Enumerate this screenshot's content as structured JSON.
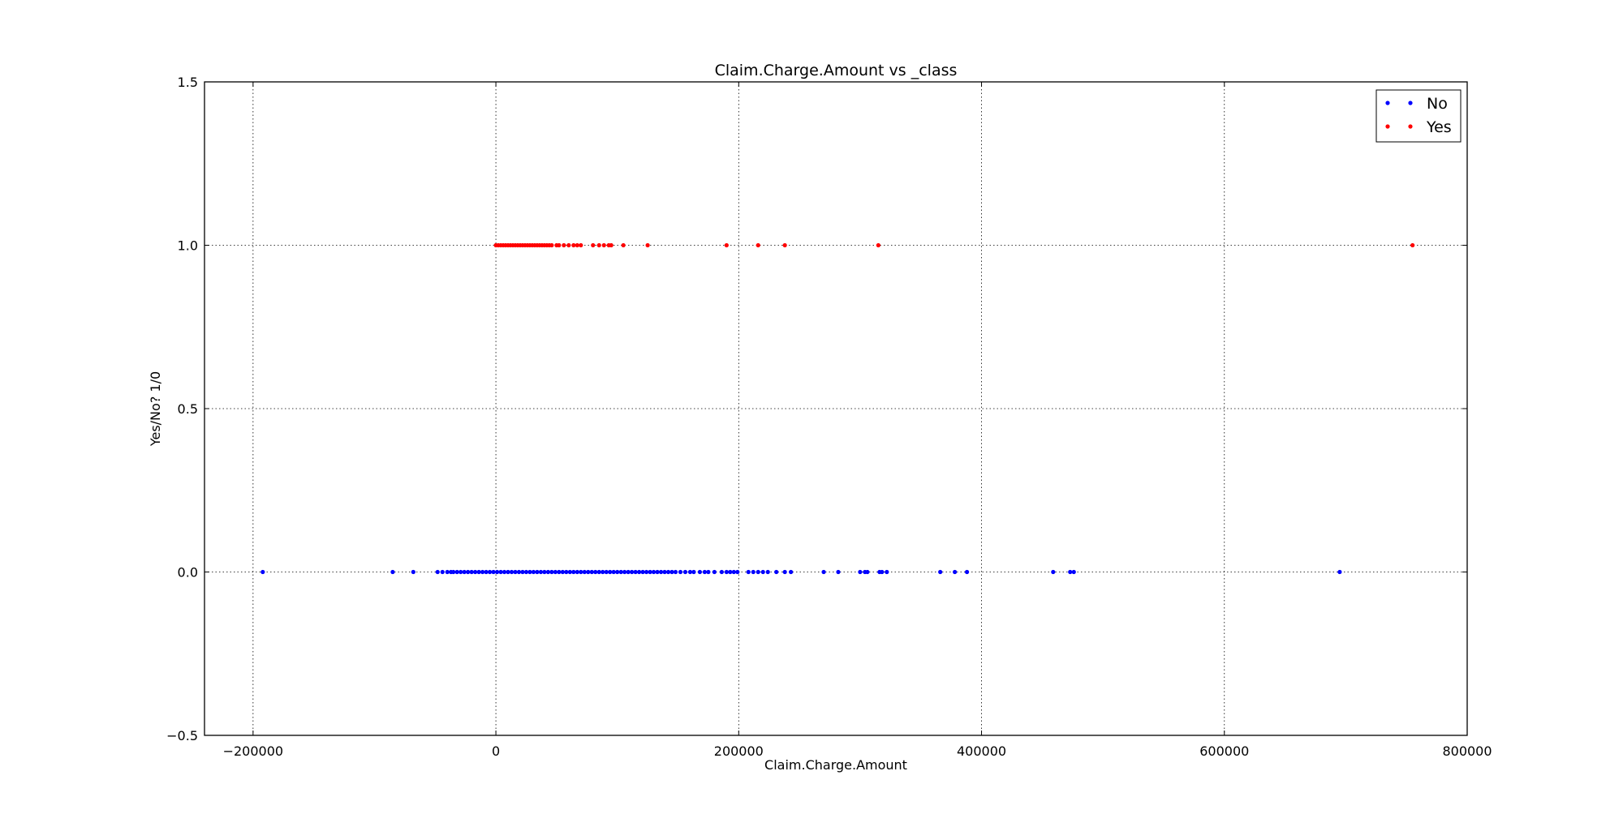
{
  "chart_data": {
    "type": "scatter",
    "title": "Claim.Charge.Amount vs _class",
    "xlabel": "Claim.Charge.Amount",
    "ylabel": "Yes/No? 1/0",
    "xlim": [
      -240000,
      800000
    ],
    "ylim": [
      -0.5,
      1.5
    ],
    "xticks": [
      -200000,
      0,
      200000,
      400000,
      600000,
      800000
    ],
    "xtick_labels": [
      "−200000",
      "0",
      "200000",
      "400000",
      "600000",
      "800000"
    ],
    "yticks": [
      -0.5,
      0.0,
      0.5,
      1.0,
      1.5
    ],
    "ytick_labels": [
      "−0.5",
      "0.0",
      "0.5",
      "1.0",
      "1.5"
    ],
    "grid": true,
    "legend_position": "top-right",
    "series": [
      {
        "name": "No",
        "color": "#0000ff",
        "y": 0,
        "x": [
          -192000,
          -85000,
          -68000,
          -48000,
          -44000,
          -40000,
          -37000,
          -35000,
          -32000,
          -29000,
          -26000,
          -23000,
          -20000,
          -17000,
          -14000,
          -11000,
          -8000,
          -5000,
          -2000,
          1000,
          4000,
          7000,
          10000,
          13000,
          16000,
          19000,
          22000,
          25000,
          28000,
          31000,
          34000,
          37000,
          40000,
          43000,
          46000,
          49000,
          52000,
          55000,
          58000,
          61000,
          64000,
          67000,
          70000,
          73000,
          76000,
          79000,
          82000,
          85000,
          88000,
          91000,
          94000,
          97000,
          100000,
          103000,
          106000,
          109000,
          112000,
          115000,
          118000,
          121000,
          124000,
          127000,
          130000,
          133000,
          136000,
          139000,
          142000,
          145000,
          148000,
          152000,
          156000,
          160000,
          163000,
          168000,
          172000,
          175000,
          180000,
          186000,
          190000,
          193000,
          196000,
          199000,
          208000,
          212000,
          216000,
          220000,
          224000,
          231000,
          238000,
          243000,
          270000,
          282000,
          300000,
          304000,
          306000,
          316000,
          318000,
          322000,
          366000,
          378000,
          388000,
          459000,
          473000,
          476000,
          695000
        ]
      },
      {
        "name": "Yes",
        "color": "#ff0000",
        "y": 1,
        "x": [
          0,
          2000,
          4000,
          6000,
          8000,
          10000,
          12000,
          14000,
          16000,
          18000,
          20000,
          22000,
          24000,
          26000,
          28000,
          30000,
          32000,
          34000,
          36000,
          38000,
          40000,
          42000,
          44000,
          46000,
          50000,
          52000,
          56000,
          60000,
          64000,
          67000,
          70000,
          80000,
          85000,
          89000,
          93000,
          95000,
          105000,
          125000,
          190000,
          216000,
          238000,
          315000,
          755000
        ]
      }
    ]
  }
}
